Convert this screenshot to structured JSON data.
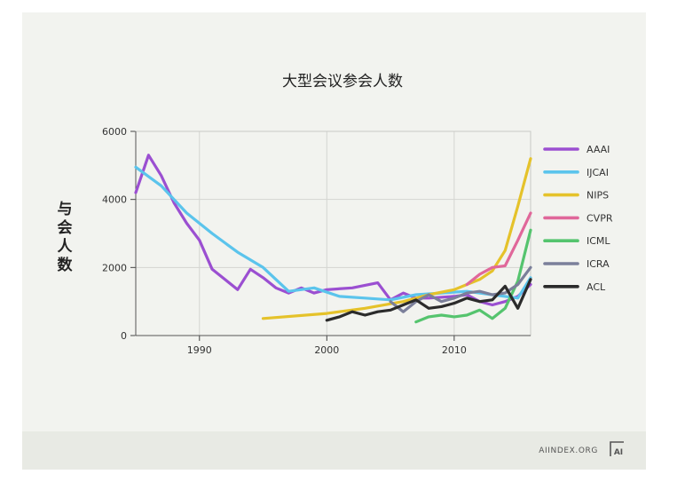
{
  "chart_data": {
    "type": "line",
    "title": "大型会议参会人数",
    "xlabel": "",
    "ylabel": "与会人数",
    "xlim": [
      1985,
      2016
    ],
    "ylim": [
      0,
      6000
    ],
    "x_ticks": [
      1990,
      2000,
      2010
    ],
    "y_ticks": [
      0,
      2000,
      4000,
      6000
    ],
    "grid": true,
    "legend_position": "right",
    "series": [
      {
        "name": "AAAI",
        "color": "#9b4fd1",
        "x": [
          1985,
          1986,
          1987,
          1988,
          1989,
          1990,
          1991,
          1992,
          1993,
          1994,
          1995,
          1996,
          1997,
          1998,
          1999,
          2000,
          2002,
          2004,
          2005,
          2006,
          2007,
          2008,
          2010,
          2011,
          2012,
          2013,
          2014,
          2015,
          2016
        ],
        "y": [
          4200,
          5300,
          4700,
          3900,
          3300,
          2800,
          1950,
          1650,
          1350,
          1950,
          1700,
          1400,
          1250,
          1400,
          1250,
          1350,
          1400,
          1550,
          1050,
          1250,
          1100,
          1100,
          1150,
          1200,
          1000,
          900,
          1000,
          1150,
          1500
        ]
      },
      {
        "name": "IJCAI",
        "color": "#5bc4ec",
        "x": [
          1985,
          1987,
          1989,
          1991,
          1993,
          1995,
          1997,
          1999,
          2001,
          2003,
          2005,
          2007,
          2009,
          2011,
          2013,
          2015,
          2016
        ],
        "y": [
          4950,
          4400,
          3600,
          3000,
          2450,
          2000,
          1300,
          1400,
          1150,
          1100,
          1050,
          1200,
          1250,
          1300,
          1200,
          1100,
          1700
        ]
      },
      {
        "name": "NIPS",
        "color": "#e5c22a",
        "x": [
          1995,
          2000,
          2003,
          2006,
          2008,
          2010,
          2011,
          2012,
          2013,
          2014,
          2015,
          2016
        ],
        "y": [
          500,
          650,
          800,
          1000,
          1200,
          1350,
          1500,
          1650,
          1900,
          2500,
          3800,
          5200
        ]
      },
      {
        "name": "CVPR",
        "color": "#e0679a",
        "x": [
          2011,
          2012,
          2013,
          2014,
          2015,
          2016
        ],
        "y": [
          1500,
          1800,
          2000,
          2050,
          2800,
          3600
        ]
      },
      {
        "name": "ICML",
        "color": "#55c46e",
        "x": [
          2007,
          2008,
          2009,
          2010,
          2011,
          2012,
          2013,
          2014,
          2015,
          2016
        ],
        "y": [
          400,
          550,
          600,
          550,
          600,
          750,
          500,
          800,
          1600,
          3100
        ]
      },
      {
        "name": "ICRA",
        "color": "#7b7f9a",
        "x": [
          2005,
          2006,
          2007,
          2008,
          2009,
          2010,
          2011,
          2012,
          2013,
          2014,
          2015,
          2016
        ],
        "y": [
          1000,
          700,
          1000,
          1200,
          1000,
          1100,
          1250,
          1300,
          1200,
          1250,
          1500,
          2000
        ]
      },
      {
        "name": "ACL",
        "color": "#2b2b2b",
        "x": [
          2000,
          2001,
          2002,
          2003,
          2004,
          2005,
          2006,
          2007,
          2008,
          2009,
          2010,
          2011,
          2012,
          2013,
          2014,
          2015,
          2016
        ],
        "y": [
          450,
          550,
          700,
          600,
          700,
          750,
          900,
          1050,
          800,
          850,
          950,
          1100,
          1000,
          1050,
          1450,
          800,
          1650
        ]
      }
    ]
  },
  "footer": {
    "brand_text": "AIINDEX.ORG",
    "logo_text": "AI"
  }
}
